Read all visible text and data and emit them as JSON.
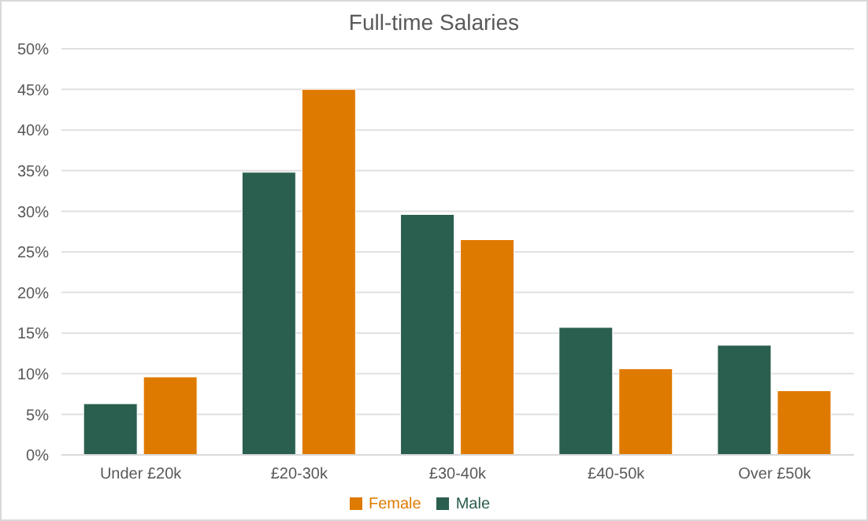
{
  "chart_data": {
    "type": "bar",
    "title": "Full-time Salaries",
    "categories": [
      "Under £20k",
      "£20-30k",
      "£30-40k",
      "£40-50k",
      "Over £50k"
    ],
    "series": [
      {
        "name": "Male",
        "color": "#2a5e4f",
        "values": [
          6.3,
          34.8,
          29.6,
          15.7,
          13.5
        ]
      },
      {
        "name": "Female",
        "color": "#df7a00",
        "values": [
          9.6,
          45.0,
          26.5,
          10.6,
          7.9
        ]
      }
    ],
    "ylim": [
      0,
      50
    ],
    "yticks": [
      {
        "value": 0,
        "label": "0%"
      },
      {
        "value": 5,
        "label": "5%"
      },
      {
        "value": 10,
        "label": "10%"
      },
      {
        "value": 15,
        "label": "15%"
      },
      {
        "value": 20,
        "label": "20%"
      },
      {
        "value": 25,
        "label": "25%"
      },
      {
        "value": 30,
        "label": "30%"
      },
      {
        "value": 35,
        "label": "35%"
      },
      {
        "value": 40,
        "label": "40%"
      },
      {
        "value": 45,
        "label": "45%"
      },
      {
        "value": 50,
        "label": "50%"
      }
    ],
    "grid": "y",
    "legend": "bottom"
  }
}
